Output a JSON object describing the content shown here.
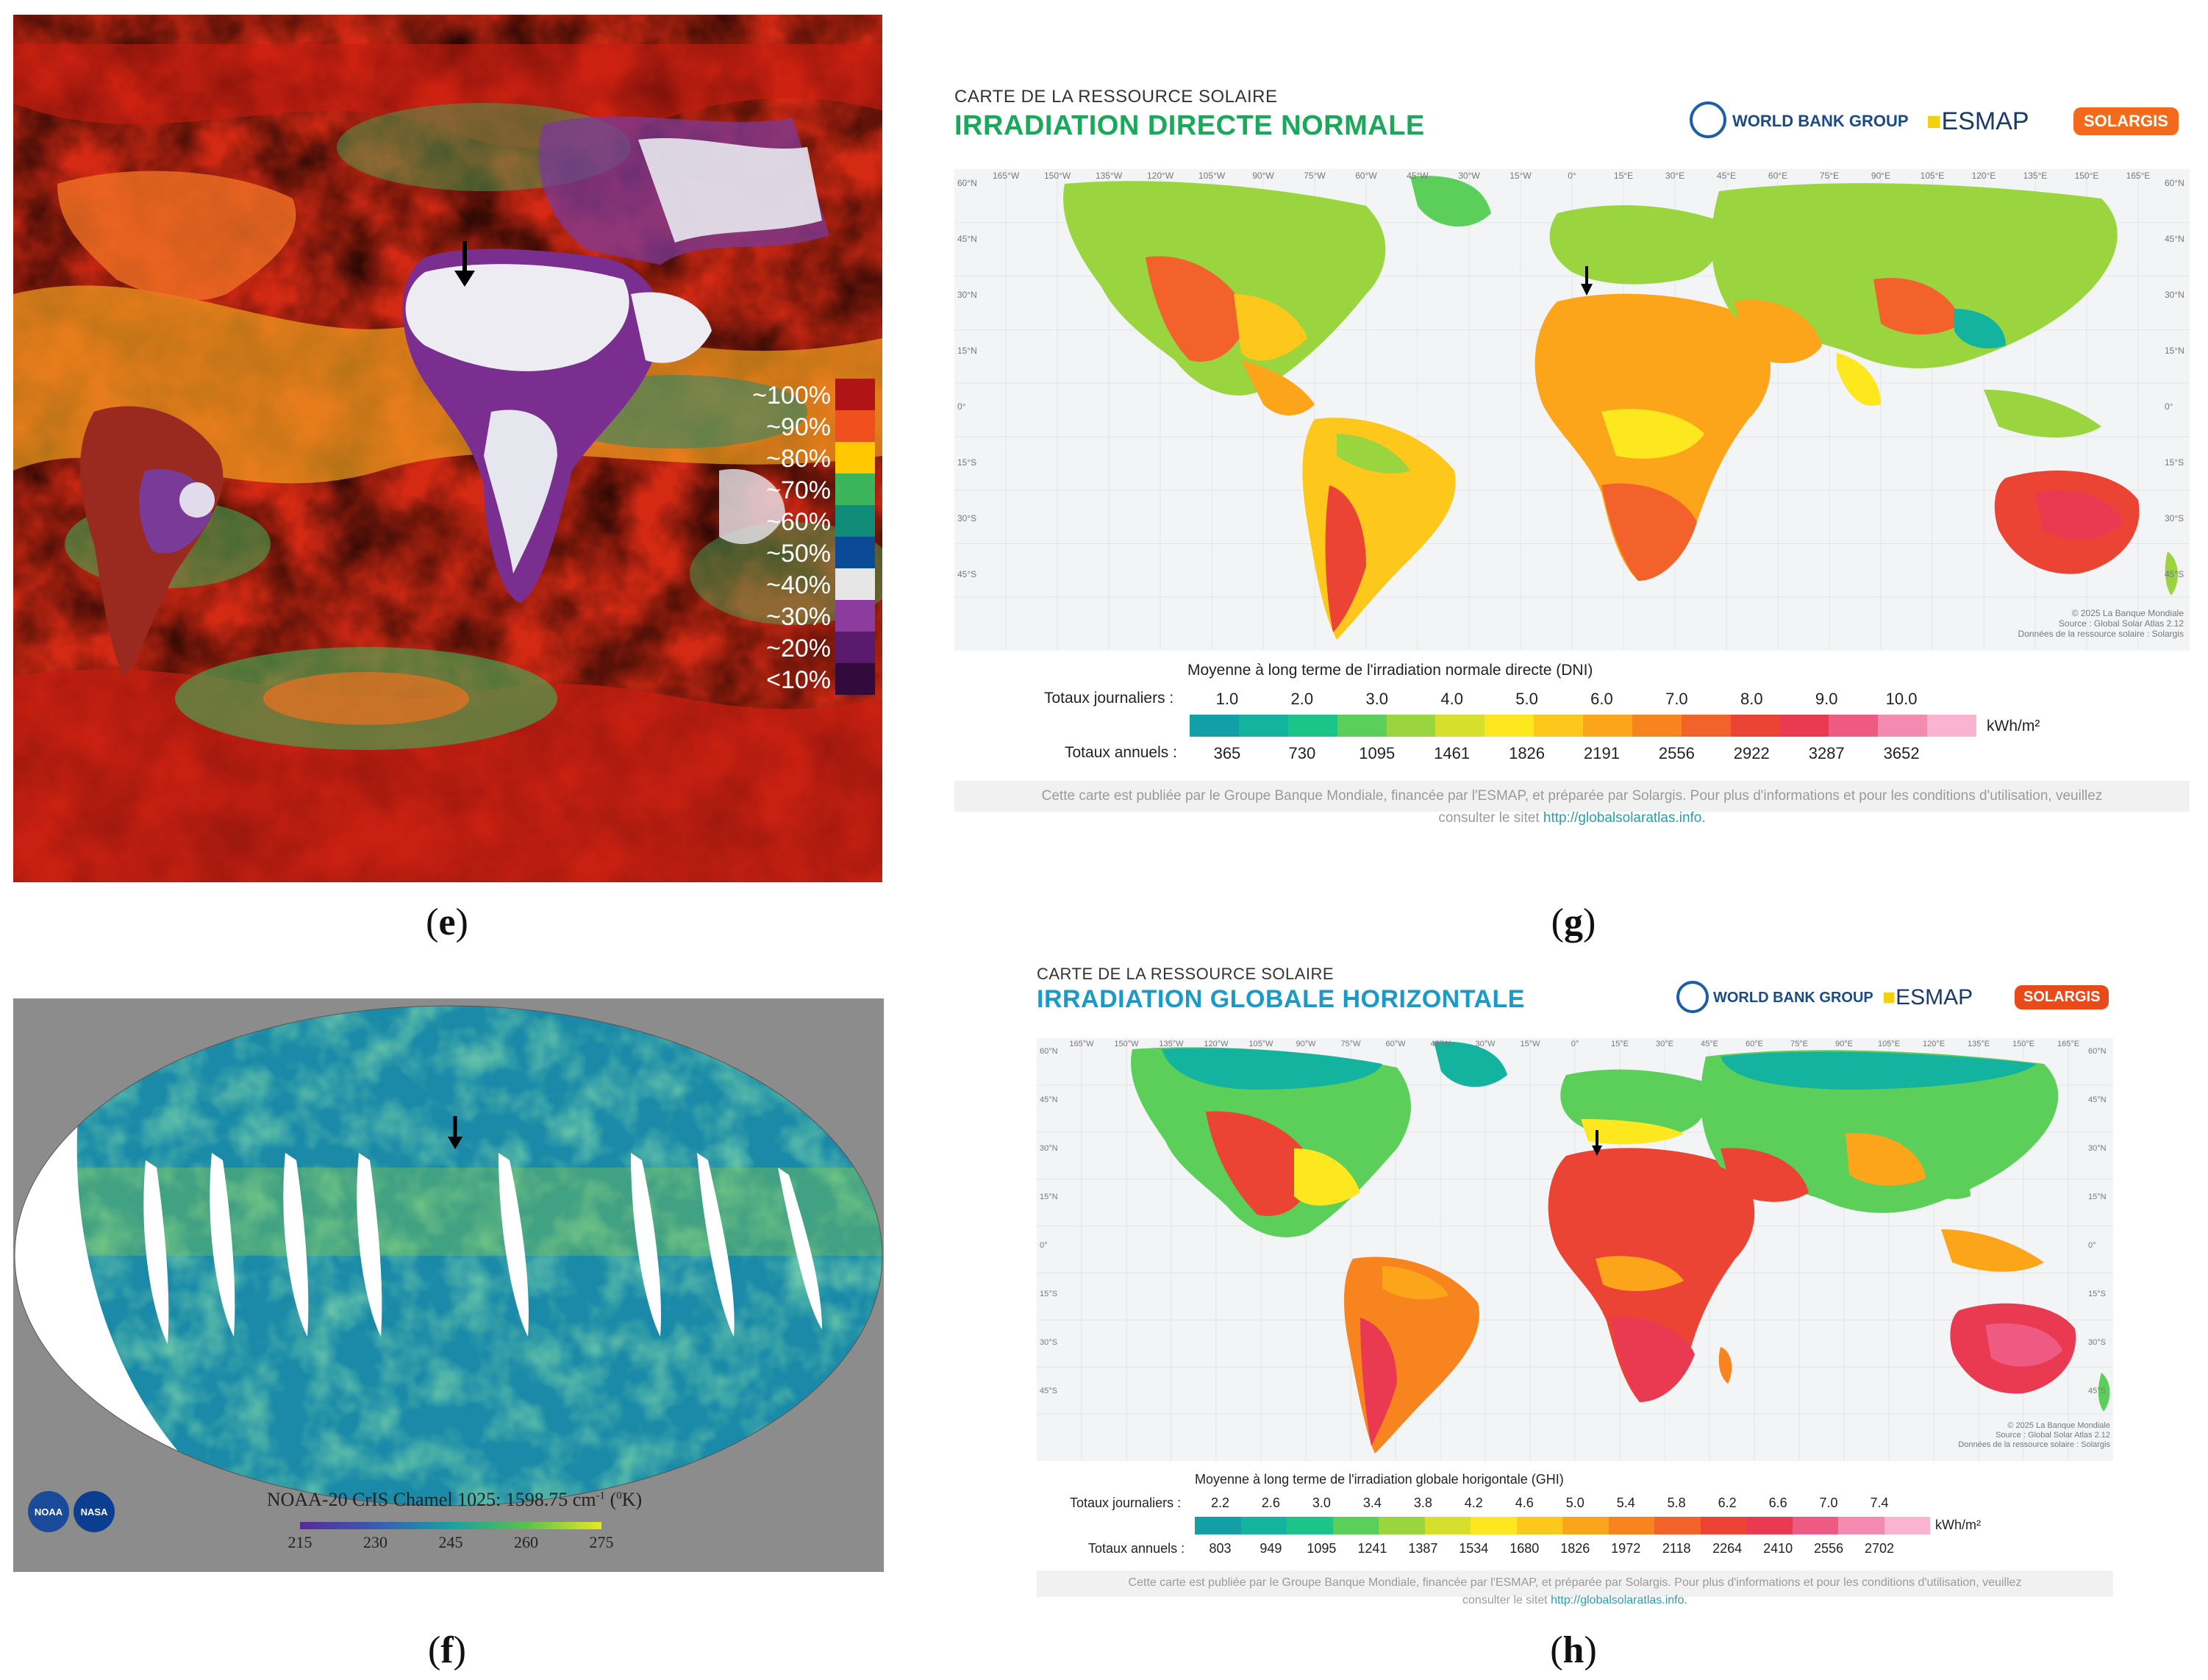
{
  "panels": {
    "e": {
      "caption": "e",
      "legend": [
        {
          "label": "~100%",
          "color": "#b01414"
        },
        {
          "label": "~90%",
          "color": "#f0501e"
        },
        {
          "label": "~80%",
          "color": "#ffc800"
        },
        {
          "label": "~70%",
          "color": "#3cb45a"
        },
        {
          "label": "~60%",
          "color": "#108c78"
        },
        {
          "label": "~50%",
          "color": "#0a4a96"
        },
        {
          "label": "~40%",
          "color": "#e6e6e6"
        },
        {
          "label": "~30%",
          "color": "#8c3c9c"
        },
        {
          "label": "~20%",
          "color": "#5a1a6e"
        },
        {
          "label": "<10%",
          "color": "#320a3c"
        }
      ]
    },
    "f": {
      "caption": "f",
      "title": "NOAA-20 CrIS Chamel 1025: 1598.75 cm",
      "title_sup": "-1",
      "title_unit_open": " (",
      "title_unit_sup": "0",
      "title_unit_close": "K)",
      "ticks": [
        "215",
        "230",
        "245",
        "260",
        "275"
      ],
      "logos": [
        "NOAA",
        "NASA"
      ]
    },
    "g": {
      "caption": "g",
      "title_small": "CARTE DE LA RESSOURCE SOLAIRE",
      "title_big": "IRRADIATION DIRECTE NORMALE",
      "title_color": "#1aa85a",
      "logos": {
        "wbg": "WORLD BANK GROUP",
        "esmap": "ESMAP",
        "solargis": "SOLARGIS"
      },
      "legend_title": "Moyenne à long terme de l'irradiation normale directe (DNI)",
      "daily_label": "Totaux journaliers :",
      "annual_label": "Totaux annuels :",
      "daily_values": [
        "1.0",
        "2.0",
        "3.0",
        "4.0",
        "5.0",
        "6.0",
        "7.0",
        "8.0",
        "9.0",
        "10.0"
      ],
      "annual_values": [
        "365",
        "730",
        "1095",
        "1461",
        "1826",
        "2191",
        "2556",
        "2922",
        "3287",
        "3652"
      ],
      "unit": "kWh/m²",
      "credit": [
        "© 2025 La Banque Mondiale",
        "Source : Global Solar Atlas 2.12",
        "Données de la ressource solaire : Solargis"
      ],
      "footer_line1": "Cette carte est publiée par le Groupe Banque Mondiale, financée par l'ESMAP, et préparée par Solargis. Pour plus d'informations et pour les conditions d'utilisation, veuillez",
      "footer_line2_prefix": "consulter le sitet ",
      "footer_link": "http://globalsolaratlas.info.",
      "lat_labels": [
        "60°N",
        "45°N",
        "30°N",
        "15°N",
        "0°",
        "15°S",
        "30°S",
        "45°S"
      ],
      "lon_labels": [
        "165°W",
        "150°W",
        "135°W",
        "120°W",
        "105°W",
        "90°W",
        "75°W",
        "60°W",
        "45°W",
        "30°W",
        "15°W",
        "0°",
        "15°E",
        "30°E",
        "45°E",
        "60°E",
        "75°E",
        "90°E",
        "105°E",
        "120°E",
        "135°E",
        "150°E",
        "165°E"
      ]
    },
    "h": {
      "caption": "h",
      "title_small": "CARTE DE LA RESSOURCE SOLAIRE",
      "title_big": "IRRADIATION GLOBALE HORIZONTALE",
      "title_color": "#1a9ac8",
      "logos": {
        "wbg": "WORLD BANK GROUP",
        "esmap": "ESMAP",
        "solargis": "SOLARGIS"
      },
      "legend_title": "Moyenne à long terme de l'irradiation globale horigontale (GHI)",
      "daily_label": "Totaux journaliers :",
      "annual_label": "Totaux annuels :",
      "daily_values": [
        "2.2",
        "2.6",
        "3.0",
        "3.4",
        "3.8",
        "4.2",
        "4.6",
        "5.0",
        "5.4",
        "5.8",
        "6.2",
        "6.6",
        "7.0",
        "7.4"
      ],
      "annual_values": [
        "803",
        "949",
        "1095",
        "1241",
        "1387",
        "1534",
        "1680",
        "1826",
        "1972",
        "2118",
        "2264",
        "2410",
        "2556",
        "2702"
      ],
      "unit": "kWh/m²",
      "credit": [
        "© 2025 La Banque Mondiale",
        "Source : Global Solar Atlas 2.12",
        "Données de la ressource solaire : Solargis"
      ],
      "footer_line1": "Cette carte est publiée par le Groupe Banque Mondiale, financée par l'ESMAP, et préparée par Solargis. Pour plus d'informations et pour les conditions d'utilisation, veuillez",
      "footer_line2_prefix": "consulter le sitet ",
      "footer_link": "http://globalsolaratlas.info.",
      "lat_labels": [
        "60°N",
        "45°N",
        "30°N",
        "15°N",
        "0°",
        "15°S",
        "30°S",
        "45°S"
      ],
      "lon_labels": [
        "165°W",
        "150°W",
        "135°W",
        "120°W",
        "105°W",
        "90°W",
        "75°W",
        "60°W",
        "45°W",
        "30°W",
        "15°W",
        "0°",
        "15°E",
        "30°E",
        "45°E",
        "60°E",
        "75°E",
        "90°E",
        "105°E",
        "120°E",
        "135°E",
        "150°E",
        "165°E"
      ]
    }
  },
  "colors": {
    "scale": [
      "#12a0a6",
      "#14b3a0",
      "#1cc48a",
      "#5ccf5a",
      "#9ad540",
      "#d6df2e",
      "#fde71e",
      "#fdc71c",
      "#fca51a",
      "#f88420",
      "#f2622a",
      "#ec4434",
      "#ea3a52",
      "#ee5a82",
      "#f58ab0",
      "#f9b4d2"
    ]
  }
}
